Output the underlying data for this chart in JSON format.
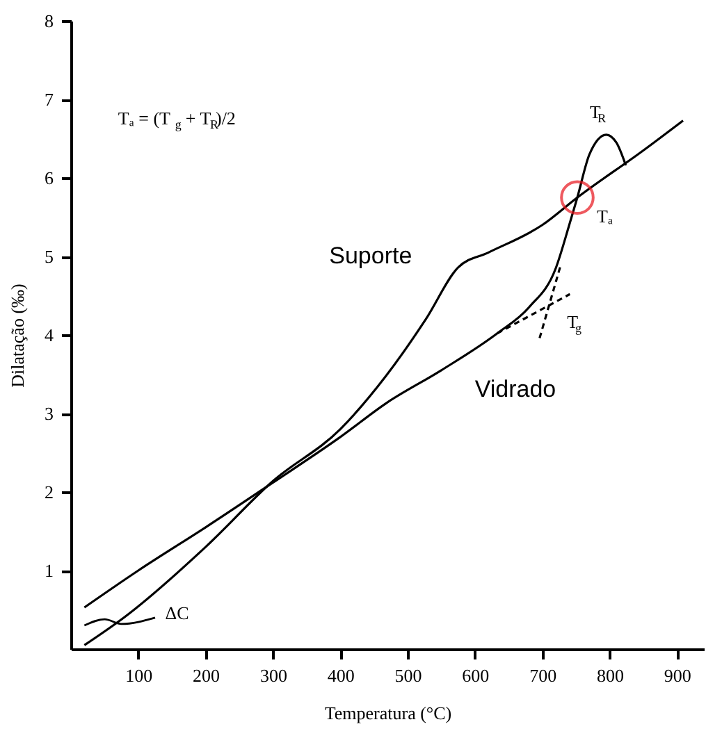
{
  "chart_data": {
    "type": "line",
    "xlabel": "Temperatura (°C)",
    "ylabel": "Dilatação (‰)",
    "xlim": [
      0,
      940
    ],
    "xticks": [
      100,
      200,
      300,
      400,
      500,
      600,
      700,
      800,
      900
    ],
    "ylim": [
      0,
      8
    ],
    "yticks": [
      1,
      2,
      3,
      4,
      5,
      6,
      7,
      8
    ],
    "grid": false,
    "marker": "none",
    "series": [
      {
        "name": "Suporte",
        "color": "#000000",
        "x": [
          20,
          80,
          200,
          300,
          400,
          468,
          527,
          575,
          620,
          700,
          752,
          850,
          909
        ],
        "values": [
          0.05,
          0.41,
          1.3,
          2.14,
          2.8,
          3.48,
          4.2,
          4.86,
          5.05,
          5.4,
          5.75,
          6.35,
          6.73
        ]
      },
      {
        "name": "Vidrado",
        "color": "#000000",
        "x": [
          20,
          100,
          200,
          300,
          400,
          468,
          550,
          633,
          680,
          720,
          740,
          752,
          770,
          795,
          810,
          824
        ],
        "values": [
          0.53,
          1.0,
          1.55,
          2.12,
          2.7,
          3.13,
          3.55,
          4.02,
          4.35,
          4.85,
          5.4,
          5.75,
          6.3,
          6.55,
          6.45,
          6.16
        ]
      },
      {
        "color": "#000000",
        "line_style": "dashed",
        "x": [
          633,
          741
        ],
        "values": [
          4.02,
          4.52
        ]
      },
      {
        "color": "#000000",
        "line_style": "dashed",
        "x": [
          696,
          728
        ],
        "values": [
          3.96,
          4.91
        ]
      }
    ],
    "annotations": [
      "Tₐ = (T$_{g}$ + T$_{R}$)/2",
      {
        "text": "T$_{R}$",
        "x": 795,
        "y": 6.55
      },
      {
        "text": "Tₐ",
        "x": 752,
        "y": 5.75
      },
      {
        "text": "T$_{g}$",
        "x": 712,
        "y": 4.37
      },
      "ΔC"
    ]
  }
}
